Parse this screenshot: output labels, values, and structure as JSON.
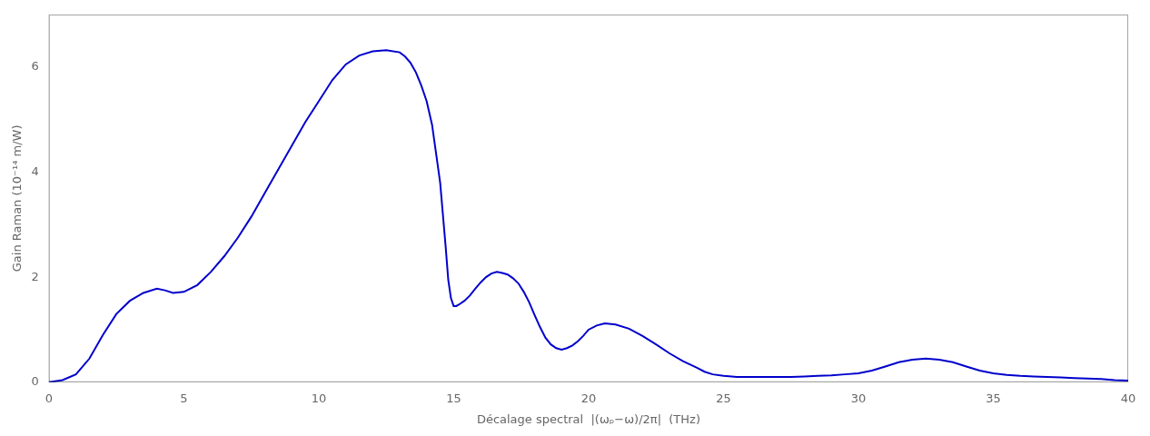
{
  "chart_data": {
    "type": "line",
    "xlabel": "Décalage spectral  |(ωₚ−ω)/2π|  (THz)",
    "ylabel": "Gain Raman (10⁻¹⁴ m/W)",
    "color": "#0000CC",
    "grid": false,
    "xlim": [
      0,
      40
    ],
    "ylim": [
      0,
      7
    ],
    "xticks": [
      0,
      5,
      10,
      15,
      20,
      25,
      30,
      35,
      40
    ],
    "yticks": [
      0,
      2,
      4,
      6
    ],
    "x": [
      0.0,
      0.5,
      1.0,
      1.5,
      2.0,
      2.5,
      3.0,
      3.5,
      4.0,
      4.3,
      4.6,
      5.0,
      5.5,
      6.0,
      6.5,
      7.0,
      7.5,
      8.0,
      8.5,
      9.0,
      9.5,
      10.0,
      10.5,
      11.0,
      11.5,
      12.0,
      12.5,
      13.0,
      13.2,
      13.4,
      13.6,
      13.8,
      14.0,
      14.2,
      14.5,
      14.7,
      14.8,
      14.9,
      15.0,
      15.1,
      15.2,
      15.4,
      15.6,
      15.8,
      16.0,
      16.2,
      16.4,
      16.6,
      16.8,
      17.0,
      17.2,
      17.4,
      17.6,
      17.8,
      18.0,
      18.2,
      18.4,
      18.6,
      18.8,
      19.0,
      19.2,
      19.4,
      19.6,
      19.8,
      20.0,
      20.3,
      20.6,
      21.0,
      21.5,
      22.0,
      22.5,
      23.0,
      23.5,
      24.0,
      24.3,
      24.6,
      25.0,
      25.5,
      26.0,
      26.5,
      27.0,
      27.5,
      28.0,
      28.5,
      29.0,
      29.5,
      30.0,
      30.5,
      31.0,
      31.5,
      32.0,
      32.5,
      33.0,
      33.5,
      34.0,
      34.5,
      35.0,
      35.5,
      36.0,
      36.5,
      37.0,
      37.5,
      38.0,
      38.5,
      39.0,
      39.5,
      40.0
    ],
    "values": [
      0.0,
      0.04,
      0.15,
      0.45,
      0.9,
      1.3,
      1.55,
      1.7,
      1.78,
      1.75,
      1.7,
      1.72,
      1.85,
      2.1,
      2.4,
      2.75,
      3.15,
      3.6,
      4.05,
      4.5,
      4.95,
      5.35,
      5.75,
      6.05,
      6.22,
      6.3,
      6.32,
      6.28,
      6.2,
      6.08,
      5.9,
      5.65,
      5.35,
      4.9,
      3.8,
      2.6,
      1.95,
      1.6,
      1.45,
      1.45,
      1.48,
      1.55,
      1.65,
      1.78,
      1.9,
      2.0,
      2.07,
      2.1,
      2.08,
      2.05,
      1.98,
      1.88,
      1.72,
      1.52,
      1.28,
      1.05,
      0.85,
      0.72,
      0.65,
      0.62,
      0.65,
      0.7,
      0.78,
      0.88,
      1.0,
      1.08,
      1.12,
      1.1,
      1.02,
      0.88,
      0.72,
      0.55,
      0.4,
      0.28,
      0.2,
      0.15,
      0.12,
      0.1,
      0.1,
      0.1,
      0.1,
      0.1,
      0.11,
      0.12,
      0.13,
      0.15,
      0.17,
      0.22,
      0.3,
      0.38,
      0.43,
      0.45,
      0.43,
      0.38,
      0.3,
      0.22,
      0.17,
      0.14,
      0.12,
      0.11,
      0.1,
      0.09,
      0.08,
      0.07,
      0.06,
      0.04,
      0.03
    ]
  }
}
